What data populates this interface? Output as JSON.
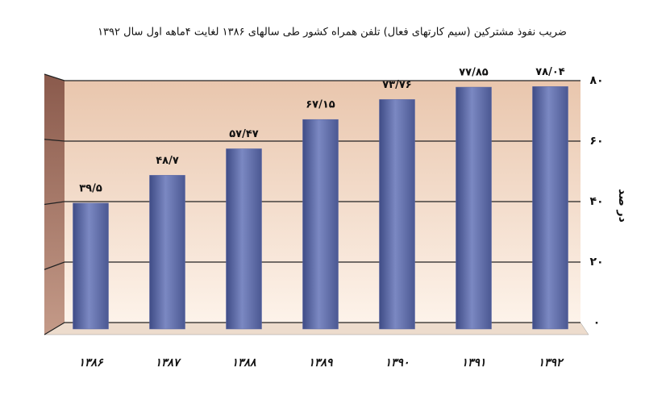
{
  "chart_data": {
    "type": "bar",
    "title": "ضریب نفوذ مشترکین (سیم کارتهای فعال) تلفن همراه کشور طی سالهای ۱۳۸۶ لغایت ۴ماهه اول سال ۱۳۹۲",
    "y_label": "در صد",
    "categories": [
      "۱۳۸۶",
      "۱۳۸۷",
      "۱۳۸۸",
      "۱۳۸۹",
      "۱۳۹۰",
      "۱۳۹۱",
      "۱۳۹۲"
    ],
    "values": [
      39.5,
      48.7,
      57.47,
      67.15,
      73.76,
      77.85,
      78.04
    ],
    "value_labels": [
      "۳۹/۵",
      "۴۸/۷",
      "۵۷/۴۷",
      "۶۷/۱۵",
      "۷۳/۷۶",
      "۷۷/۸۵",
      "۷۸/۰۴"
    ],
    "color": "#5a68a6",
    "ylim": [
      0,
      80
    ],
    "yticks": [
      {
        "value": 0,
        "label": "۰"
      },
      {
        "value": 20,
        "label": "۲۰"
      },
      {
        "value": 40,
        "label": "۴۰"
      },
      {
        "value": 60,
        "label": "۶۰"
      },
      {
        "value": 80,
        "label": "۸۰"
      }
    ],
    "grid": true
  }
}
